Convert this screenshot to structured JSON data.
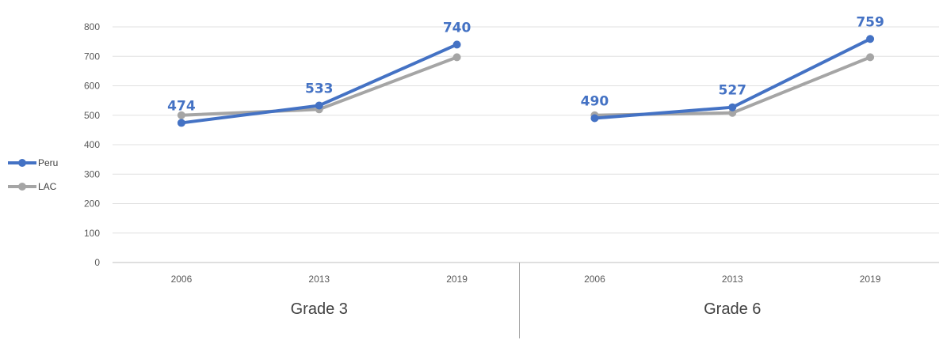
{
  "chart_data": {
    "type": "line",
    "groups": [
      {
        "name": "Grade 3",
        "categories": [
          "2006",
          "2013",
          "2019"
        ]
      },
      {
        "name": "Grade 6",
        "categories": [
          "2006",
          "2013",
          "2019"
        ]
      }
    ],
    "series": [
      {
        "name": "Peru",
        "color": "#4472C4",
        "values": [
          [
            474,
            533,
            740
          ],
          [
            490,
            527,
            759
          ]
        ],
        "data_labels": [
          [
            "474",
            "533",
            "740"
          ],
          [
            "490",
            "527",
            "759"
          ]
        ]
      },
      {
        "name": "LAC",
        "color": "#A5A5A5",
        "values": [
          [
            500,
            520,
            697
          ],
          [
            500,
            508,
            697
          ]
        ]
      }
    ],
    "ylim": [
      0,
      800
    ],
    "yticks": [
      "0",
      "100",
      "200",
      "300",
      "400",
      "500",
      "600",
      "700",
      "800"
    ],
    "grid": true,
    "legend_position": "left"
  }
}
